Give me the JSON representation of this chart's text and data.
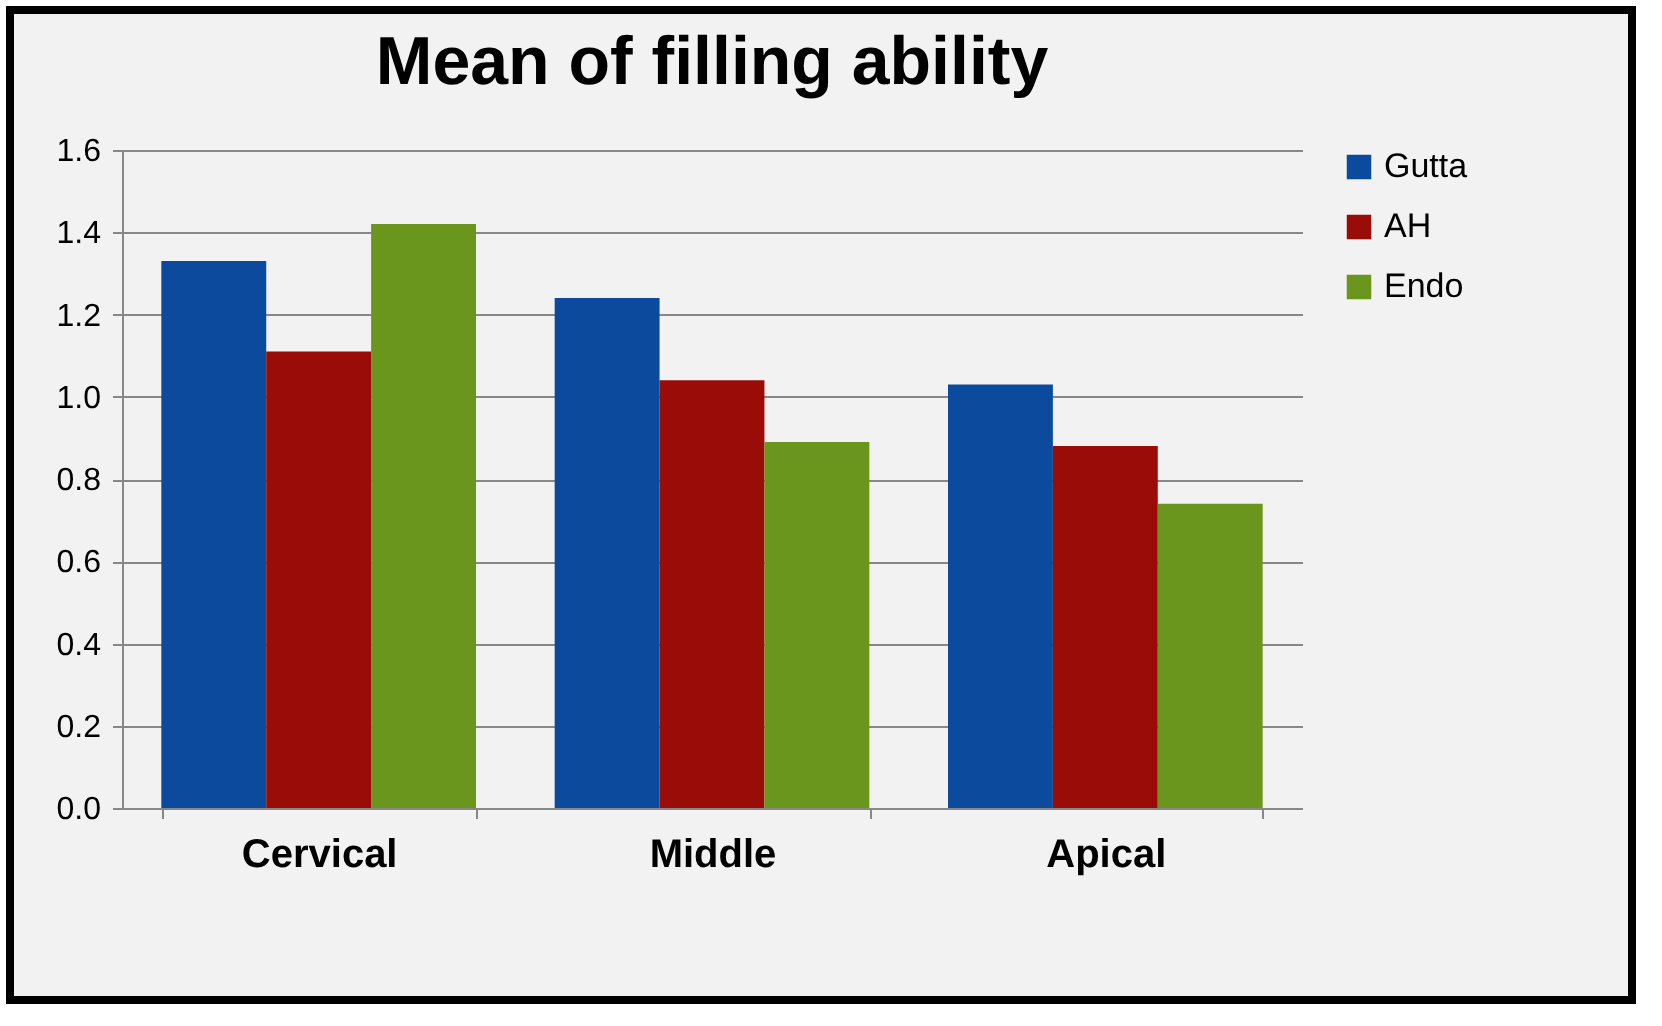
{
  "chart_data": {
    "type": "bar",
    "title": "Mean of filling ability",
    "categories": [
      "Cervical",
      "Middle",
      "Apical"
    ],
    "series": [
      {
        "name": "Gutta",
        "color": "#0b4a9c",
        "values": [
          1.33,
          1.24,
          1.03
        ]
      },
      {
        "name": "AH",
        "color": "#990c08",
        "values": [
          1.11,
          1.04,
          0.88
        ]
      },
      {
        "name": "Endo",
        "color": "#6a961e",
        "values": [
          1.42,
          0.89,
          0.74
        ]
      }
    ],
    "ylim": [
      0,
      1.6
    ],
    "yticks": [
      {
        "value": 0,
        "label": "0.0"
      },
      0.2,
      0.4,
      0.6,
      0.8,
      {
        "value": 1,
        "label": "1.0"
      },
      1.2,
      1.4,
      1.6
    ],
    "grid": "y",
    "legend": "right"
  }
}
